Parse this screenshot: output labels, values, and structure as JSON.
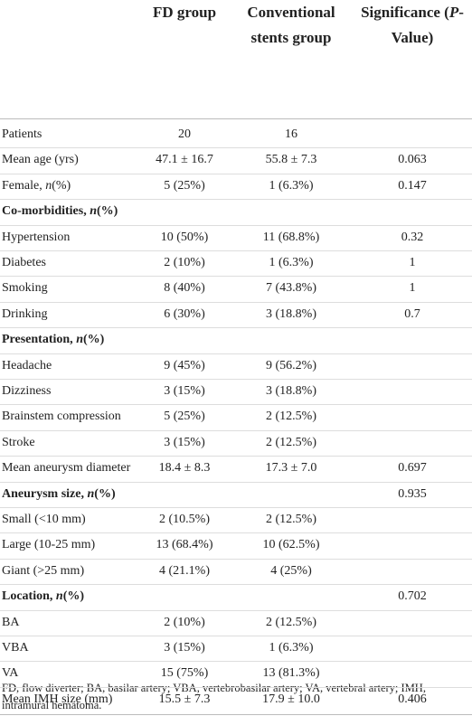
{
  "table": {
    "columns": [
      [
        "FD group"
      ],
      [
        "Conventional stents group"
      ],
      [
        "Significance (",
        "P",
        "-Value)"
      ]
    ],
    "rows": [
      {
        "label": [
          "Patients"
        ],
        "values": [
          "20",
          "16",
          null
        ],
        "section": false
      },
      {
        "label": [
          "Mean age (yrs)"
        ],
        "values": [
          "47.1 ± 16.7",
          "55.8 ± 7.3",
          "0.063"
        ],
        "section": false
      },
      {
        "label": [
          "Female, ",
          "n",
          "(%)"
        ],
        "values": [
          "5 (25%)",
          "1 (6.3%)",
          "0.147"
        ],
        "section": false
      },
      {
        "label": [
          "Co-morbidities, ",
          "n",
          "(%)"
        ],
        "values": [
          null,
          null,
          null
        ],
        "section": true
      },
      {
        "label": [
          "Hypertension"
        ],
        "values": [
          "10 (50%)",
          "11 (68.8%)",
          "0.32"
        ],
        "section": false
      },
      {
        "label": [
          "Diabetes"
        ],
        "values": [
          "2 (10%)",
          "1 (6.3%)",
          "1"
        ],
        "section": false
      },
      {
        "label": [
          "Smoking"
        ],
        "values": [
          "8 (40%)",
          "7 (43.8%)",
          "1"
        ],
        "section": false
      },
      {
        "label": [
          "Drinking"
        ],
        "values": [
          "6 (30%)",
          "3 (18.8%)",
          "0.7"
        ],
        "section": false
      },
      {
        "label": [
          "Presentation, ",
          "n",
          "(%)"
        ],
        "values": [
          null,
          null,
          null
        ],
        "section": true
      },
      {
        "label": [
          "Headache"
        ],
        "values": [
          "9 (45%)",
          "9 (56.2%)",
          null
        ],
        "section": false
      },
      {
        "label": [
          "Dizziness"
        ],
        "values": [
          "3 (15%)",
          "3 (18.8%)",
          null
        ],
        "section": false
      },
      {
        "label": [
          "Brainstem compression"
        ],
        "values": [
          "5 (25%)",
          "2 (12.5%)",
          null
        ],
        "section": false
      },
      {
        "label": [
          "Stroke"
        ],
        "values": [
          "3 (15%)",
          "2 (12.5%)",
          null
        ],
        "section": false
      },
      {
        "label": [
          "Mean aneurysm diameter"
        ],
        "values": [
          "18.4 ± 8.3",
          "17.3 ± 7.0",
          "0.697"
        ],
        "section": false
      },
      {
        "label": [
          "Aneurysm size, ",
          "n",
          "(%)"
        ],
        "values": [
          null,
          null,
          "0.935"
        ],
        "section": true
      },
      {
        "label": [
          "Small (<10 mm)"
        ],
        "values": [
          "2 (10.5%)",
          "2 (12.5%)",
          null
        ],
        "section": false
      },
      {
        "label": [
          "Large (10-25 mm)"
        ],
        "values": [
          "13 (68.4%)",
          "10 (62.5%)",
          null
        ],
        "section": false
      },
      {
        "label": [
          "Giant (>25 mm)"
        ],
        "values": [
          "4 (21.1%)",
          "4 (25%)",
          null
        ],
        "section": false
      },
      {
        "label": [
          "Location, ",
          "n",
          "(%)"
        ],
        "values": [
          null,
          null,
          "0.702"
        ],
        "section": true
      },
      {
        "label": [
          "BA"
        ],
        "values": [
          "2 (10%)",
          "2 (12.5%)",
          null
        ],
        "section": false
      },
      {
        "label": [
          "VBA"
        ],
        "values": [
          "3 (15%)",
          "1 (6.3%)",
          null
        ],
        "section": false
      },
      {
        "label": [
          "VA"
        ],
        "values": [
          "15 (75%)",
          "13 (81.3%)",
          null
        ],
        "section": false
      },
      {
        "label": [
          "Mean IMH size (mm)"
        ],
        "values": [
          "15.5 ± 7.3",
          "17.9 ± 10.0",
          "0.406"
        ],
        "section": false
      }
    ],
    "footnote": "FD, flow diverter; BA, basilar artery; VBA, vertebrobasilar artery; VA, vertebral artery; IMH, intramural hematoma."
  }
}
